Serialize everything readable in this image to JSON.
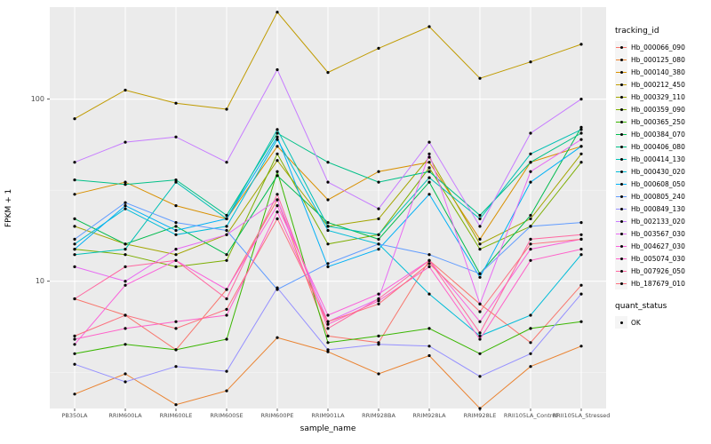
{
  "chart_data": {
    "type": "line",
    "title": "",
    "xlabel": "sample_name",
    "ylabel": "FPKM + 1",
    "y_scale": "log10",
    "ylim": [
      2,
      320
    ],
    "y_major_ticks": [
      10,
      100
    ],
    "y_minor_ticks": [
      3.16,
      31.6
    ],
    "grid": true,
    "legend_position": "right",
    "panel_bg": "#EBEBEB",
    "grid_color": "#FFFFFF",
    "point_color": "#000000",
    "categories": [
      "PB350LA",
      "RRIM600LA",
      "RRIM600LE",
      "RRIM600SE",
      "RRIM600PE",
      "RRIM901LA",
      "RRIM928BA",
      "RRIM928LA",
      "RRIM928LE",
      "RRII105LA_Control",
      "RRII105LA_Stressed"
    ],
    "series": [
      {
        "name": "Hb_000066_090",
        "color": "#F8766D",
        "values": [
          8,
          6.5,
          4.2,
          9,
          28,
          5,
          4.6,
          13,
          7.5,
          4.6,
          9.5
        ]
      },
      {
        "name": "Hb_000125_080",
        "color": "#EA8331",
        "values": [
          2.4,
          3.1,
          2.1,
          2.5,
          4.9,
          4.1,
          3.1,
          3.9,
          2.0,
          3.4,
          4.4
        ]
      },
      {
        "name": "Hb_000140_380",
        "color": "#D89000",
        "values": [
          30,
          35,
          26,
          22,
          55,
          28,
          40,
          45,
          17,
          45,
          55
        ]
      },
      {
        "name": "Hb_000212_450",
        "color": "#C09B00",
        "values": [
          78,
          112,
          95,
          88,
          300,
          140,
          190,
          250,
          130,
          160,
          200
        ]
      },
      {
        "name": "Hb_000329_110",
        "color": "#A3A500",
        "values": [
          20,
          16,
          14,
          18,
          46,
          20,
          22,
          48,
          16,
          22,
          50
        ]
      },
      {
        "name": "Hb_000359_090",
        "color": "#7CAE00",
        "values": [
          15,
          14,
          12,
          13,
          50,
          16,
          18,
          42,
          15,
          20,
          45
        ]
      },
      {
        "name": "Hb_000365_250",
        "color": "#39B600",
        "values": [
          4,
          4.5,
          4.2,
          4.8,
          40,
          4.6,
          5,
          5.5,
          4,
          5.5,
          6
        ]
      },
      {
        "name": "Hb_000384_070",
        "color": "#00BB4E",
        "values": [
          22,
          16,
          20,
          14,
          38,
          21,
          17,
          35,
          11,
          23,
          70
        ]
      },
      {
        "name": "Hb_000406_080",
        "color": "#00C087",
        "values": [
          36,
          34,
          36,
          23,
          65,
          45,
          35,
          40,
          23,
          45,
          65
        ]
      },
      {
        "name": "Hb_000414_130",
        "color": "#00C0B4",
        "values": [
          14,
          15,
          35,
          22,
          68,
          20,
          18,
          37,
          22,
          50,
          68
        ]
      },
      {
        "name": "Hb_000430_020",
        "color": "#00BCD8",
        "values": [
          16,
          25,
          18,
          20,
          60,
          19,
          16,
          8.5,
          5,
          6.5,
          14
        ]
      },
      {
        "name": "Hb_000608_050",
        "color": "#00B0F6",
        "values": [
          15,
          26,
          19,
          22,
          62,
          12,
          15,
          30,
          10.5,
          35,
          55
        ]
      },
      {
        "name": "Hb_000805_240",
        "color": "#619CFF",
        "values": [
          17,
          27,
          21,
          19,
          9,
          12.5,
          16,
          14,
          11,
          20,
          21
        ]
      },
      {
        "name": "Hb_000849_130",
        "color": "#9590FF",
        "values": [
          3.5,
          2.8,
          3.4,
          3.2,
          9.2,
          4.2,
          4.5,
          4.4,
          3,
          4,
          8.5
        ]
      },
      {
        "name": "Hb_002133_020",
        "color": "#C77CFF",
        "values": [
          45,
          58,
          62,
          45,
          145,
          35,
          25,
          58,
          20,
          65,
          100
        ]
      },
      {
        "name": "Hb_003567_030",
        "color": "#E76BF3",
        "values": [
          12,
          10,
          15,
          18,
          28,
          6,
          8,
          50,
          7.5,
          40,
          60
        ]
      },
      {
        "name": "Hb_004627_030",
        "color": "#FA62DB",
        "values": [
          4.5,
          9.5,
          13,
          9,
          26,
          6.5,
          8.5,
          13,
          6,
          15,
          17
        ]
      },
      {
        "name": "Hb_005074_030",
        "color": "#FF61C9",
        "values": [
          4.8,
          5.5,
          6,
          6.5,
          24,
          5.8,
          7.8,
          12,
          4.8,
          13,
          15
        ]
      },
      {
        "name": "Hb_007926_050",
        "color": "#FF68A1",
        "values": [
          8,
          12,
          13,
          8,
          30,
          5.5,
          8,
          13,
          5.2,
          17,
          18
        ]
      },
      {
        "name": "Hb_187679_010",
        "color": "#FC717F",
        "values": [
          5,
          6.5,
          5.5,
          7,
          22,
          6,
          7.5,
          12.5,
          6.8,
          16,
          17
        ]
      }
    ],
    "legend": {
      "color_title": "tracking_id",
      "shape_title": "quant_status",
      "shape_items": [
        "OK"
      ]
    }
  }
}
